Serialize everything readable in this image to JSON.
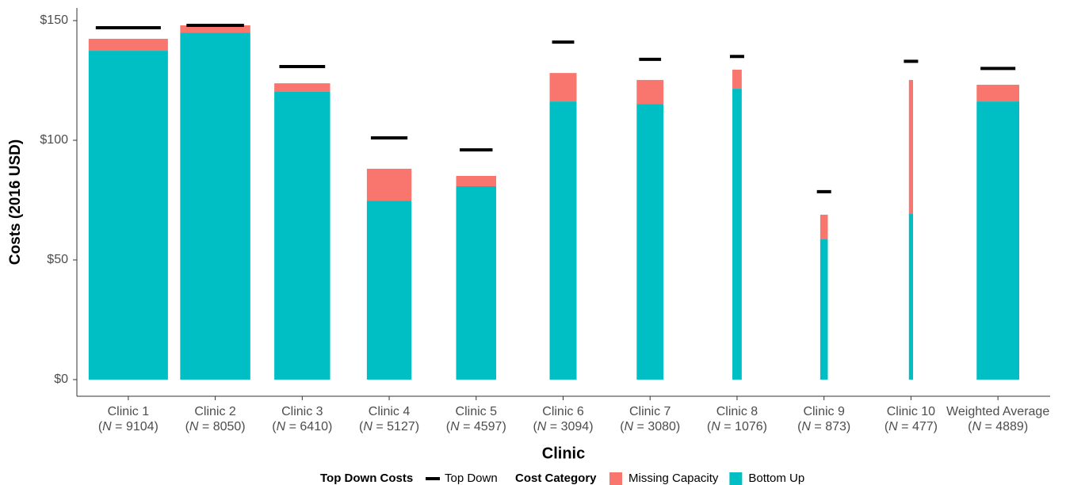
{
  "chart_data": {
    "type": "stacked_bar",
    "x_label": "Clinic",
    "y_label": "Costs (2016 USD)",
    "categories": [
      "Clinic 1",
      "Clinic 2",
      "Clinic 3",
      "Clinic 4",
      "Clinic 5",
      "Clinic 6",
      "Clinic 7",
      "Clinic 8",
      "Clinic 9",
      "Clinic 10",
      "Weighted Average"
    ],
    "n": [
      9104,
      8050,
      6410,
      5127,
      4597,
      3094,
      3080,
      1076,
      873,
      477,
      4889
    ],
    "n_labels": [
      "(N = 9104)",
      "(N = 8050)",
      "(N = 6410)",
      "(N = 5127)",
      "(N = 4597)",
      "(N = 3094)",
      "(N = 3080)",
      "(N = 1076)",
      "(N = 873)",
      "(N = 477)",
      "(N = 4889)"
    ],
    "series": [
      {
        "name": "Bottom Up",
        "color": "#00BFC4",
        "values": [
          137.4,
          145,
          120.2,
          74.8,
          80.8,
          116.2,
          115.2,
          121.5,
          58.6,
          69.2,
          116.2
        ]
      },
      {
        "name": "Missing Capacity",
        "color": "#F8766D",
        "values": [
          5,
          3,
          3.6,
          13.3,
          4.3,
          11.9,
          10,
          8,
          10.3,
          56,
          7
        ]
      }
    ],
    "top_down": {
      "name": "Top Down",
      "color": "#000000",
      "values": [
        147,
        148,
        130.8,
        101,
        96,
        141,
        133.8,
        135,
        78.5,
        133,
        130
      ]
    },
    "legend_titles": {
      "top_down": "Top Down Costs",
      "category": "Cost Category"
    },
    "ylim": [
      -4,
      151.5
    ],
    "yticks": [
      {
        "value": 0,
        "label": "$0"
      },
      {
        "value": 50,
        "label": "$50"
      },
      {
        "value": 100,
        "label": "$100"
      },
      {
        "value": 150,
        "label": "$150"
      }
    ]
  }
}
